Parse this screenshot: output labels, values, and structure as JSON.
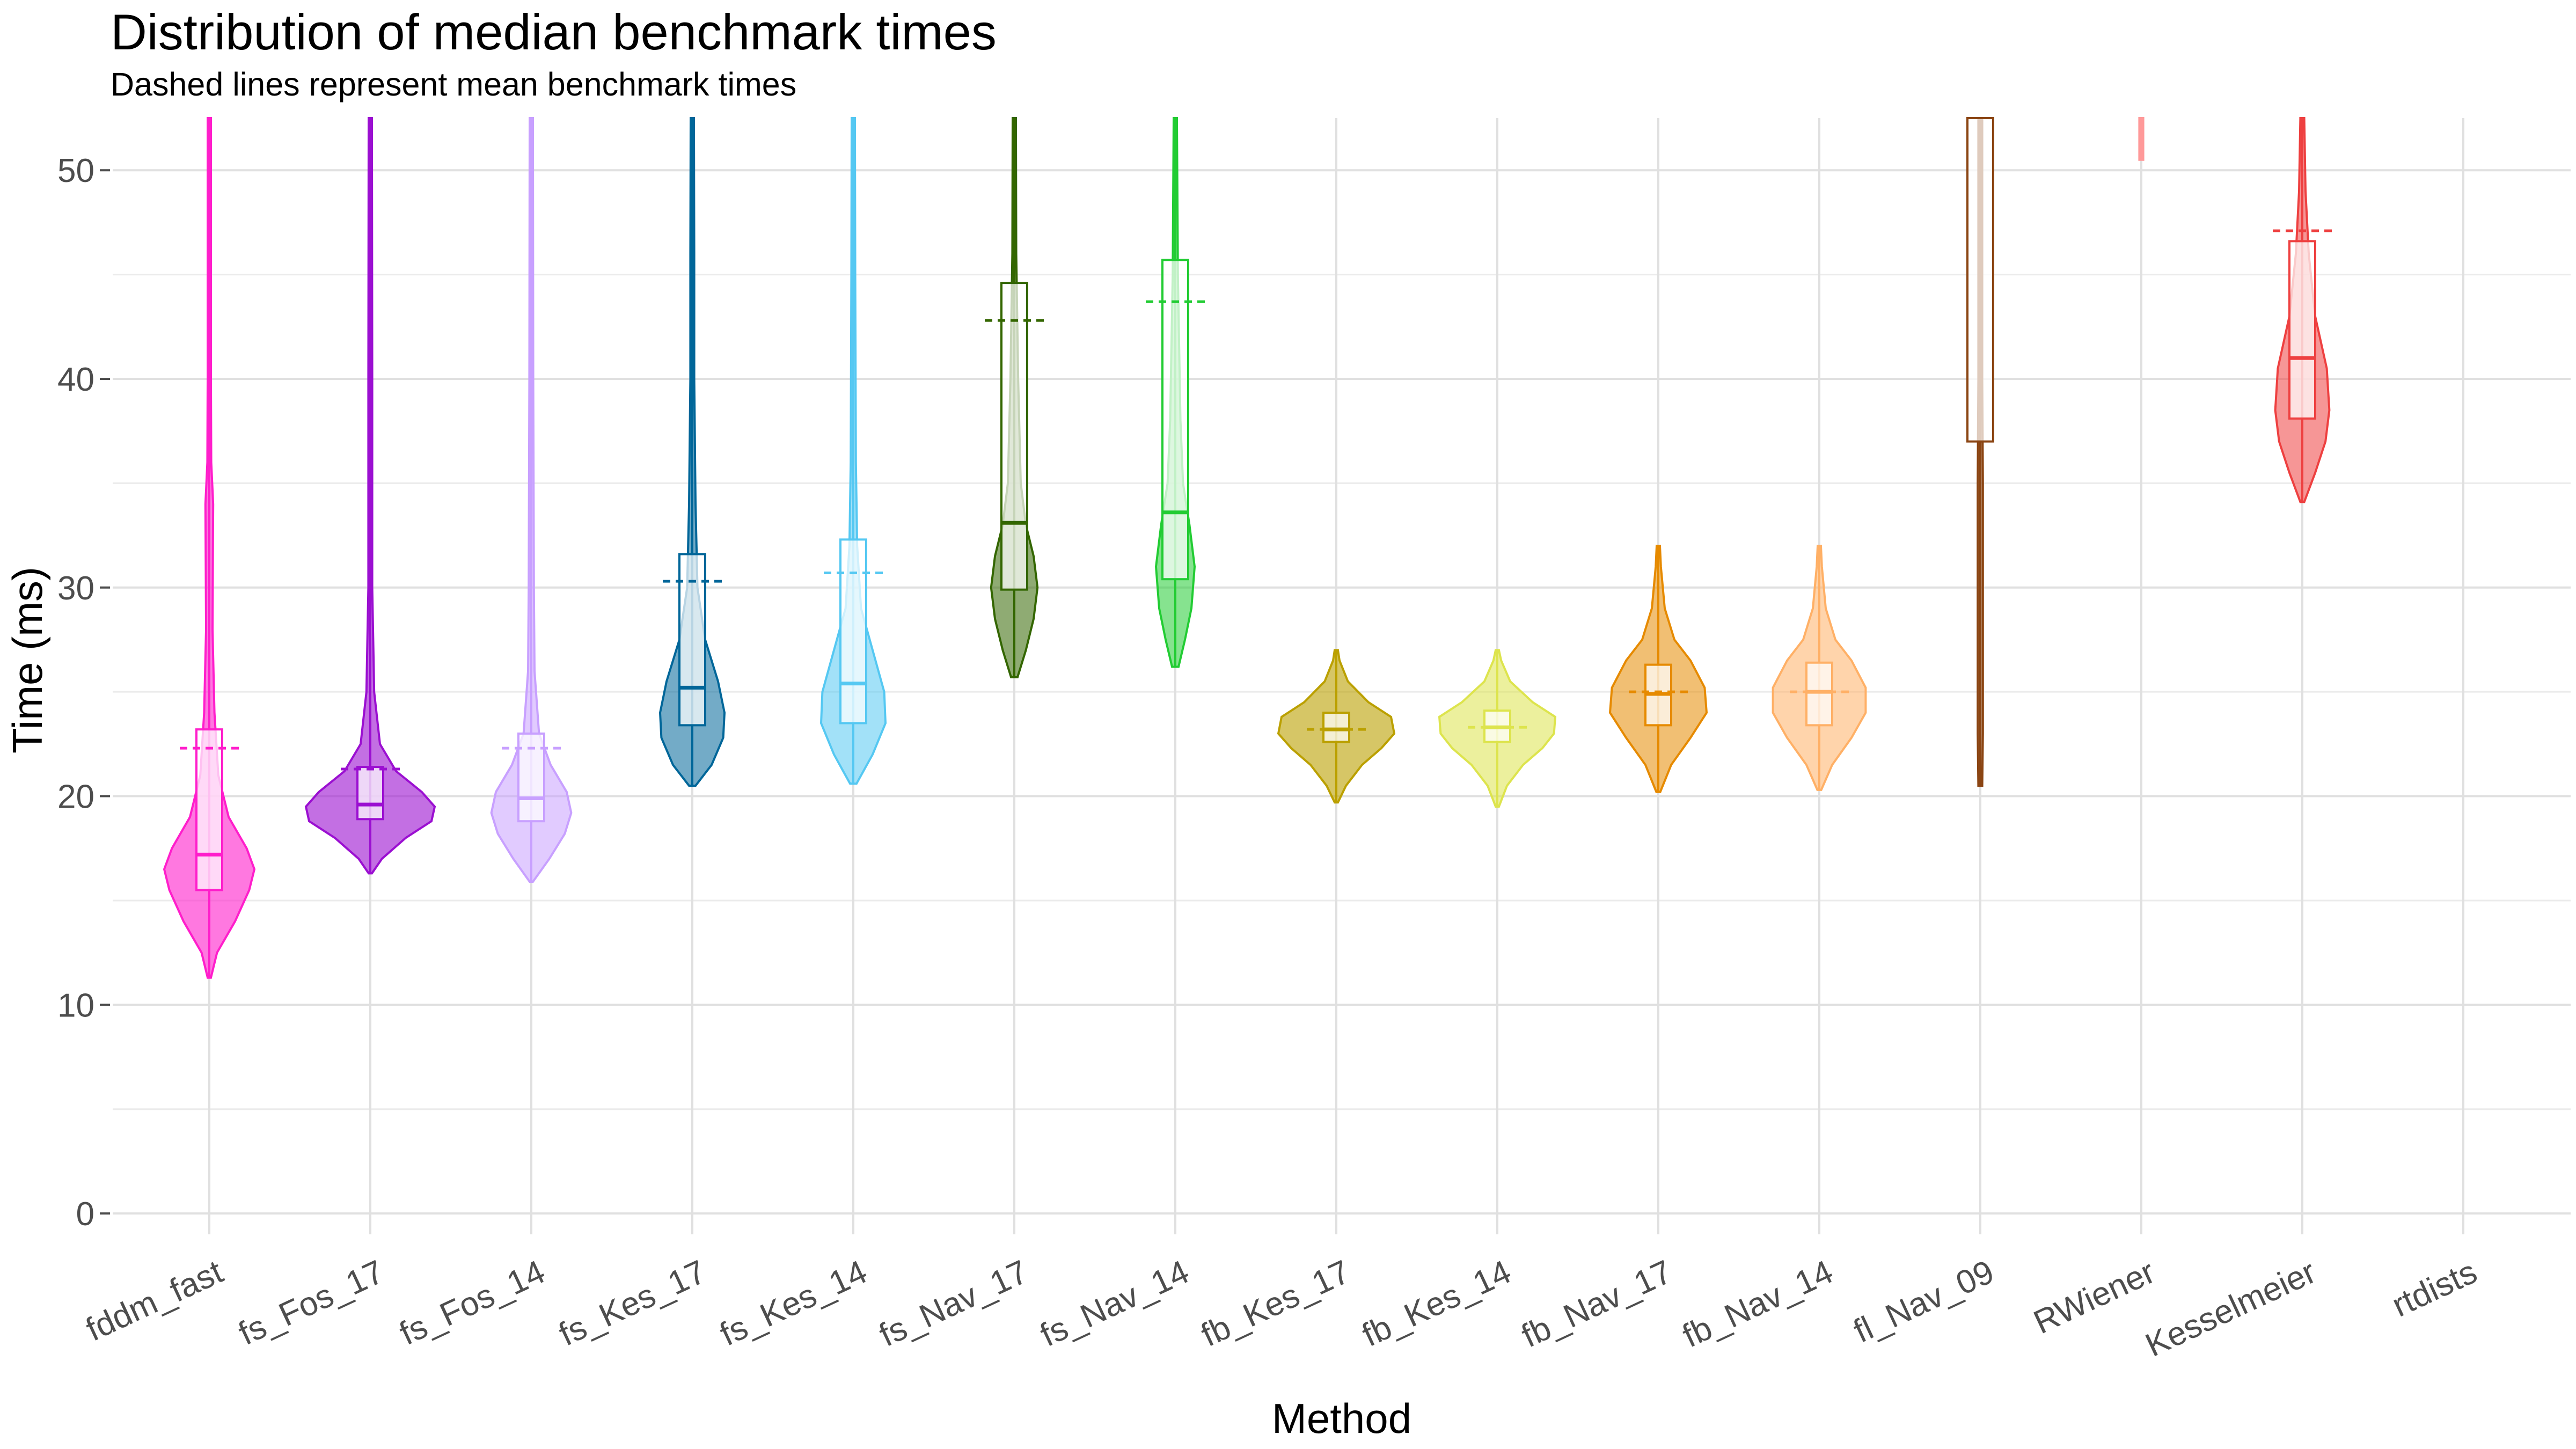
{
  "chart_data": {
    "type": "violin",
    "title": "Distribution of median benchmark times",
    "subtitle": "Dashed lines represent mean benchmark times",
    "xlabel": "Method",
    "ylabel": "Time (ms)",
    "ylim": [
      -1,
      52.5
    ],
    "y_ticks": [
      0,
      10,
      20,
      30,
      40,
      50
    ],
    "y_tick_labels": [
      "0",
      "10",
      "20",
      "30",
      "40",
      "50"
    ],
    "grid": true,
    "legend": "none",
    "categories": [
      "fddm_fast",
      "fs_Fos_17",
      "fs_Fos_14",
      "fs_Kes_17",
      "fs_Kes_14",
      "fs_Nav_17",
      "fs_Nav_14",
      "fb_Kes_17",
      "fb_Kes_14",
      "fb_Nav_17",
      "fb_Nav_14",
      "fl_Nav_09",
      "RWiener",
      "Kesselmeier",
      "rtdists"
    ],
    "series": [
      {
        "color": "#FF1ECB",
        "fill_opacity": 0.6,
        "q1": 15.5,
        "median": 17.2,
        "q3": 23.2,
        "whisker_low": 11.3,
        "whisker_high": 52.5,
        "mean": 22.3,
        "violin_min": 11.3,
        "violin_max": 52.5,
        "violin_profile": [
          [
            11.3,
            0.02
          ],
          [
            12.5,
            0.12
          ],
          [
            14,
            0.4
          ],
          [
            15.5,
            0.62
          ],
          [
            16.5,
            0.7
          ],
          [
            17.5,
            0.58
          ],
          [
            19,
            0.3
          ],
          [
            21,
            0.14
          ],
          [
            24,
            0.08
          ],
          [
            28,
            0.05
          ],
          [
            34,
            0.06
          ],
          [
            36,
            0.03
          ],
          [
            40,
            0.02
          ],
          [
            46,
            0.02
          ],
          [
            52.5,
            0.02
          ]
        ]
      },
      {
        "color": "#9B0FD1",
        "fill_opacity": 0.6,
        "q1": 18.9,
        "median": 19.6,
        "q3": 21.4,
        "whisker_low": 16.3,
        "whisker_high": 52.5,
        "mean": 21.3,
        "violin_min": 16.3,
        "violin_max": 52.5,
        "violin_profile": [
          [
            16.3,
            0.02
          ],
          [
            17,
            0.18
          ],
          [
            18,
            0.55
          ],
          [
            18.8,
            0.95
          ],
          [
            19.5,
            1.0
          ],
          [
            20.2,
            0.8
          ],
          [
            21.2,
            0.4
          ],
          [
            22.5,
            0.15
          ],
          [
            25,
            0.06
          ],
          [
            30,
            0.03
          ],
          [
            40,
            0.03
          ],
          [
            52.5,
            0.02
          ]
        ]
      },
      {
        "color": "#C8A0FF",
        "fill_opacity": 0.55,
        "q1": 18.8,
        "median": 19.9,
        "q3": 23.0,
        "whisker_low": 15.9,
        "whisker_high": 52.5,
        "mean": 22.3,
        "violin_min": 15.9,
        "violin_max": 52.5,
        "violin_profile": [
          [
            15.9,
            0.02
          ],
          [
            17,
            0.28
          ],
          [
            18.2,
            0.52
          ],
          [
            19.2,
            0.62
          ],
          [
            20.2,
            0.55
          ],
          [
            21.5,
            0.3
          ],
          [
            23,
            0.12
          ],
          [
            26,
            0.05
          ],
          [
            30,
            0.04
          ],
          [
            40,
            0.03
          ],
          [
            52.5,
            0.02
          ]
        ]
      },
      {
        "color": "#006699",
        "fill_opacity": 0.55,
        "q1": 23.4,
        "median": 25.2,
        "q3": 31.6,
        "whisker_low": 20.5,
        "whisker_high": 52.5,
        "mean": 30.3,
        "violin_min": 20.5,
        "violin_max": 52.5,
        "violin_profile": [
          [
            20.5,
            0.05
          ],
          [
            21.5,
            0.3
          ],
          [
            22.8,
            0.48
          ],
          [
            24,
            0.5
          ],
          [
            25.5,
            0.4
          ],
          [
            27.5,
            0.2
          ],
          [
            30,
            0.08
          ],
          [
            34,
            0.05
          ],
          [
            40,
            0.03
          ],
          [
            46,
            0.03
          ],
          [
            52.5,
            0.02
          ]
        ]
      },
      {
        "color": "#55C8F2",
        "fill_opacity": 0.55,
        "q1": 23.5,
        "median": 25.4,
        "q3": 32.3,
        "whisker_low": 20.6,
        "whisker_high": 52.5,
        "mean": 30.7,
        "violin_min": 20.6,
        "violin_max": 52.5,
        "violin_profile": [
          [
            20.6,
            0.05
          ],
          [
            22,
            0.3
          ],
          [
            23.5,
            0.5
          ],
          [
            25,
            0.48
          ],
          [
            27,
            0.3
          ],
          [
            29,
            0.12
          ],
          [
            32,
            0.06
          ],
          [
            36,
            0.04
          ],
          [
            45,
            0.03
          ],
          [
            52.5,
            0.02
          ]
        ]
      },
      {
        "color": "#336600",
        "fill_opacity": 0.55,
        "q1": 29.9,
        "median": 33.1,
        "q3": 44.6,
        "whisker_low": 25.7,
        "whisker_high": 52.5,
        "mean": 42.8,
        "violin_min": 25.7,
        "violin_max": 52.5,
        "violin_profile": [
          [
            25.7,
            0.05
          ],
          [
            27,
            0.18
          ],
          [
            28.5,
            0.3
          ],
          [
            30,
            0.36
          ],
          [
            31.5,
            0.3
          ],
          [
            33,
            0.18
          ],
          [
            35,
            0.1
          ],
          [
            40,
            0.06
          ],
          [
            46,
            0.03
          ],
          [
            52.5,
            0.02
          ]
        ]
      },
      {
        "color": "#22CC33",
        "fill_opacity": 0.55,
        "q1": 30.4,
        "median": 33.6,
        "q3": 45.7,
        "whisker_low": 26.2,
        "whisker_high": 52.5,
        "mean": 43.7,
        "violin_min": 26.2,
        "violin_max": 52.5,
        "violin_profile": [
          [
            26.2,
            0.05
          ],
          [
            27.5,
            0.15
          ],
          [
            29,
            0.25
          ],
          [
            31,
            0.3
          ],
          [
            33,
            0.22
          ],
          [
            35,
            0.12
          ],
          [
            38,
            0.08
          ],
          [
            45,
            0.04
          ],
          [
            52.5,
            0.02
          ]
        ]
      },
      {
        "color": "#BBA000",
        "fill_opacity": 0.6,
        "q1": 22.6,
        "median": 23.2,
        "q3": 24.0,
        "whisker_low": 19.7,
        "whisker_high": 27.0,
        "mean": 23.2,
        "violin_min": 19.7,
        "violin_max": 27.0,
        "violin_profile": [
          [
            19.7,
            0.02
          ],
          [
            20.5,
            0.15
          ],
          [
            21.5,
            0.4
          ],
          [
            22.3,
            0.7
          ],
          [
            23,
            0.9
          ],
          [
            23.8,
            0.85
          ],
          [
            24.5,
            0.5
          ],
          [
            25.5,
            0.18
          ],
          [
            26.5,
            0.05
          ],
          [
            27,
            0.02
          ]
        ]
      },
      {
        "color": "#DDE44D",
        "fill_opacity": 0.55,
        "q1": 22.6,
        "median": 23.3,
        "q3": 24.1,
        "whisker_low": 19.5,
        "whisker_high": 27.0,
        "mean": 23.3,
        "violin_min": 19.5,
        "violin_max": 27.0,
        "violin_profile": [
          [
            19.5,
            0.02
          ],
          [
            20.5,
            0.15
          ],
          [
            21.5,
            0.4
          ],
          [
            22.3,
            0.7
          ],
          [
            23,
            0.88
          ],
          [
            23.8,
            0.9
          ],
          [
            24.5,
            0.55
          ],
          [
            25.5,
            0.2
          ],
          [
            26.5,
            0.06
          ],
          [
            27,
            0.02
          ]
        ]
      },
      {
        "color": "#E68A00",
        "fill_opacity": 0.55,
        "q1": 23.4,
        "median": 24.9,
        "q3": 26.3,
        "whisker_low": 20.2,
        "whisker_high": 32.0,
        "mean": 25.0,
        "violin_min": 20.2,
        "violin_max": 32.0,
        "violin_profile": [
          [
            20.2,
            0.03
          ],
          [
            21.5,
            0.2
          ],
          [
            22.8,
            0.5
          ],
          [
            24,
            0.75
          ],
          [
            25.2,
            0.72
          ],
          [
            26.5,
            0.5
          ],
          [
            27.5,
            0.25
          ],
          [
            29,
            0.1
          ],
          [
            31,
            0.04
          ],
          [
            32,
            0.02
          ]
        ]
      },
      {
        "color": "#FFB066",
        "fill_opacity": 0.55,
        "q1": 23.4,
        "median": 25.0,
        "q3": 26.4,
        "whisker_low": 20.3,
        "whisker_high": 32.0,
        "mean": 25.0,
        "violin_min": 20.3,
        "violin_max": 32.0,
        "violin_profile": [
          [
            20.3,
            0.03
          ],
          [
            21.5,
            0.2
          ],
          [
            22.8,
            0.5
          ],
          [
            24,
            0.72
          ],
          [
            25.2,
            0.72
          ],
          [
            26.5,
            0.5
          ],
          [
            27.5,
            0.25
          ],
          [
            29,
            0.1
          ],
          [
            31,
            0.04
          ],
          [
            32,
            0.02
          ]
        ]
      },
      {
        "color": "#8B4513",
        "fill_opacity": 0.55,
        "q1": 37.0,
        "median": 52.5,
        "q3": 52.5,
        "whisker_low": 20.5,
        "whisker_high": 52.5,
        "mean": null,
        "violin_min": 20.5,
        "violin_max": 52.5,
        "violin_profile": [
          [
            20.5,
            0.03
          ],
          [
            23,
            0.04
          ],
          [
            30,
            0.04
          ],
          [
            35,
            0.04
          ],
          [
            40,
            0.03
          ],
          [
            52.5,
            0.03
          ]
        ]
      },
      {
        "color": "#FF9999",
        "fill_opacity": 0.55,
        "q1": null,
        "median": null,
        "q3": null,
        "whisker_low": 50.5,
        "whisker_high": 52.5,
        "mean": null,
        "violin_min": 50.5,
        "violin_max": 52.5,
        "violin_profile": [
          [
            50.5,
            0.03
          ],
          [
            52.5,
            0.03
          ]
        ]
      },
      {
        "color": "#EE4040",
        "fill_opacity": 0.55,
        "q1": 38.1,
        "median": 41.0,
        "q3": 46.6,
        "whisker_low": 34.1,
        "whisker_high": 52.5,
        "mean": 47.1,
        "violin_min": 34.1,
        "violin_max": 52.5,
        "violin_profile": [
          [
            34.1,
            0.03
          ],
          [
            35.5,
            0.2
          ],
          [
            37,
            0.36
          ],
          [
            38.5,
            0.42
          ],
          [
            40.5,
            0.38
          ],
          [
            43,
            0.2
          ],
          [
            46,
            0.1
          ],
          [
            49,
            0.05
          ],
          [
            52.5,
            0.03
          ]
        ]
      },
      {
        "color": "#999999",
        "fill_opacity": 0.5,
        "q1": null,
        "median": null,
        "q3": null,
        "whisker_low": null,
        "whisker_high": null,
        "mean": null,
        "violin_min": null,
        "violin_max": null,
        "violin_profile": []
      }
    ]
  }
}
